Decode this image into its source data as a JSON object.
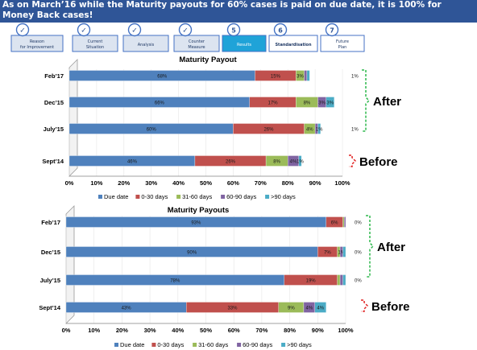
{
  "header": {
    "title": "As on March’16 while the Maturity payouts for 60% cases is paid on due date, it is 100% for Money Back cases!"
  },
  "steps": [
    {
      "label": "Reason for Improvement",
      "state": "done",
      "marker": "✓"
    },
    {
      "label": "Current Situation",
      "state": "done",
      "marker": "✓"
    },
    {
      "label": "Analysis",
      "state": "done",
      "marker": "✓"
    },
    {
      "label": "Counter Measure",
      "state": "done",
      "marker": "✓"
    },
    {
      "label": "Results",
      "state": "active",
      "marker": "5"
    },
    {
      "label": "Standardisation",
      "state": "pending",
      "marker": "6"
    },
    {
      "label": "Future Plan",
      "state": "pending",
      "marker": "7"
    }
  ],
  "colors": {
    "header_bg": "#2f5597",
    "step_done_fill": "#dce4f0",
    "step_active_fill": "#1fa3d8",
    "step_border": "#4472c4",
    "after_bracket": "#2eb84d",
    "before_bracket": "#e02020"
  },
  "chart_data": [
    {
      "type": "bar",
      "orientation": "horizontal",
      "stacked": true,
      "title": "Maturity Payout",
      "categories": [
        "Feb’17",
        "Dec’15",
        "July’15",
        "Sept’14"
      ],
      "series": [
        {
          "name": "Due date",
          "color": "#4f81bd",
          "values": [
            68,
            66,
            60,
            46
          ],
          "labels": [
            "68%",
            "66%",
            "60%",
            "46%"
          ]
        },
        {
          "name": "0-30 days",
          "color": "#c0504d",
          "values": [
            15,
            17,
            26,
            26
          ],
          "labels": [
            "15%",
            "17%",
            "26%",
            "26%"
          ]
        },
        {
          "name": "31-60 days",
          "color": "#9bbb59",
          "values": [
            3,
            8,
            4,
            8
          ],
          "labels": [
            "3%",
            "8%",
            "4%",
            "8%"
          ]
        },
        {
          "name": "60-90 days",
          "color": "#8064a2",
          "values": [
            1,
            3,
            1,
            4
          ],
          "labels": [
            "",
            "3%",
            "",
            "4%"
          ]
        },
        {
          "name": ">90 days",
          "color": "#4bacc6",
          "values": [
            1,
            3,
            1,
            1
          ],
          "labels": [
            "",
            "3%",
            "1%",
            "1%"
          ]
        }
      ],
      "outside_labels": [
        "1%",
        "",
        "1%",
        ""
      ],
      "xlim": [
        0,
        100
      ],
      "xticks": [
        "0%",
        "10%",
        "20%",
        "30%",
        "40%",
        "50%",
        "60%",
        "70%",
        "80%",
        "90%",
        "100%"
      ],
      "legend_position": "bottom",
      "annotations": {
        "after": "After",
        "before": "Before"
      }
    },
    {
      "type": "bar",
      "orientation": "horizontal",
      "stacked": true,
      "title": "Maturity Payouts",
      "categories": [
        "Feb’17",
        "Dec’15",
        "July’15",
        "Sept’14"
      ],
      "series": [
        {
          "name": "Due date",
          "color": "#4f81bd",
          "values": [
            93,
            90,
            78,
            43
          ],
          "labels": [
            "93%",
            "90%",
            "78%",
            "43%"
          ]
        },
        {
          "name": "0-30 days",
          "color": "#c0504d",
          "values": [
            6,
            7,
            19,
            33
          ],
          "labels": [
            "6%",
            "7%",
            "19%",
            "33%"
          ]
        },
        {
          "name": "31-60 days",
          "color": "#9bbb59",
          "values": [
            0.5,
            1,
            1,
            9
          ],
          "labels": [
            "",
            "",
            "",
            "9%"
          ]
        },
        {
          "name": "60-90 days",
          "color": "#8064a2",
          "values": [
            0.5,
            1,
            1,
            4
          ],
          "labels": [
            "",
            "1%",
            "",
            "4%"
          ]
        },
        {
          "name": ">90 days",
          "color": "#4bacc6",
          "values": [
            0,
            1,
            1,
            4
          ],
          "labels": [
            "",
            "",
            "",
            "4%"
          ]
        }
      ],
      "outside_labels": [
        "0%",
        "0%",
        "0%",
        ""
      ],
      "xlim": [
        0,
        100
      ],
      "xticks": [
        "0%",
        "10%",
        "20%",
        "30%",
        "40%",
        "50%",
        "60%",
        "70%",
        "80%",
        "90%",
        "100%"
      ],
      "legend_position": "bottom",
      "annotations": {
        "after": "After",
        "before": "Before"
      }
    }
  ]
}
